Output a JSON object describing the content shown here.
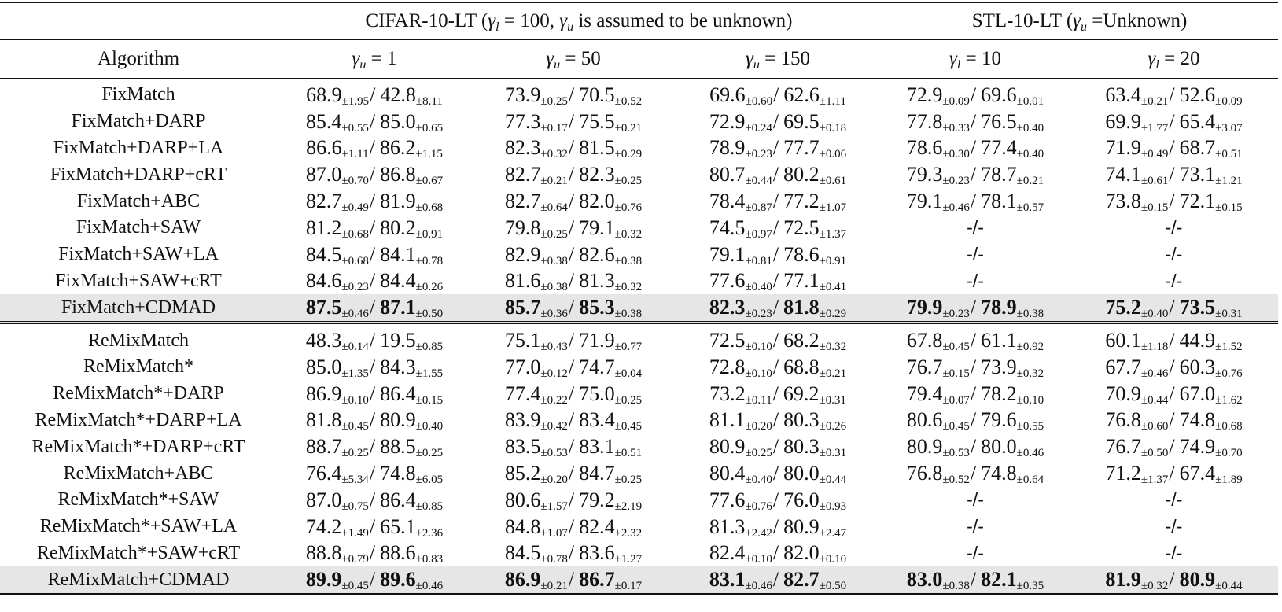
{
  "table": {
    "group_headers": [
      {
        "segments": [
          {
            "t": "CIFAR-10-LT ("
          },
          {
            "m": "γ",
            "s": "l"
          },
          {
            "t": " = 100, "
          },
          {
            "m": "γ",
            "s": "u"
          },
          {
            "t": " is assumed to be unknown)"
          }
        ]
      },
      {
        "segments": [
          {
            "t": "STL-10-LT ("
          },
          {
            "m": "γ",
            "s": "u"
          },
          {
            "t": " =Unknown)"
          }
        ]
      }
    ],
    "column_header_algorithm": "Algorithm",
    "columns": [
      {
        "sym": "γ",
        "sub": "u",
        "rest": " = 1"
      },
      {
        "sym": "γ",
        "sub": "u",
        "rest": " = 50"
      },
      {
        "sym": "γ",
        "sub": "u",
        "rest": " = 150"
      },
      {
        "sym": "γ",
        "sub": "l",
        "rest": " = 10"
      },
      {
        "sym": "γ",
        "sub": "l",
        "rest": " = 20"
      }
    ],
    "highlight_color": "#e6e6e6",
    "sections": [
      [
        {
          "name": "FixMatch",
          "cells": [
            [
              "68.9",
              "±1.95",
              "42.8",
              "±8.11"
            ],
            [
              "73.9",
              "±0.25",
              "70.5",
              "±0.52"
            ],
            [
              "69.6",
              "±0.60",
              "62.6",
              "±1.11"
            ],
            [
              "72.9",
              "±0.09",
              "69.6",
              "±0.01"
            ],
            [
              "63.4",
              "±0.21",
              "52.6",
              "±0.09"
            ]
          ]
        },
        {
          "name": "FixMatch+DARP",
          "cells": [
            [
              "85.4",
              "±0.55",
              "85.0",
              "±0.65"
            ],
            [
              "77.3",
              "±0.17",
              "75.5",
              "±0.21"
            ],
            [
              "72.9",
              "±0.24",
              "69.5",
              "±0.18"
            ],
            [
              "77.8",
              "±0.33",
              "76.5",
              "±0.40"
            ],
            [
              "69.9",
              "±1.77",
              "65.4",
              "±3.07"
            ]
          ]
        },
        {
          "name": "FixMatch+DARP+LA",
          "cells": [
            [
              "86.6",
              "±1.11",
              "86.2",
              "±1.15"
            ],
            [
              "82.3",
              "±0.32",
              "81.5",
              "±0.29"
            ],
            [
              "78.9",
              "±0.23",
              "77.7",
              "±0.06"
            ],
            [
              "78.6",
              "±0.30",
              "77.4",
              "±0.40"
            ],
            [
              "71.9",
              "±0.49",
              "68.7",
              "±0.51"
            ]
          ]
        },
        {
          "name": "FixMatch+DARP+cRT",
          "cells": [
            [
              "87.0",
              "±0.70",
              "86.8",
              "±0.67"
            ],
            [
              "82.7",
              "±0.21",
              "82.3",
              "±0.25"
            ],
            [
              "80.7",
              "±0.44",
              "80.2",
              "±0.61"
            ],
            [
              "79.3",
              "±0.23",
              "78.7",
              "±0.21"
            ],
            [
              "74.1",
              "±0.61",
              "73.1",
              "±1.21"
            ]
          ]
        },
        {
          "name": "FixMatch+ABC",
          "cells": [
            [
              "82.7",
              "±0.49",
              "81.9",
              "±0.68"
            ],
            [
              "82.7",
              "±0.64",
              "82.0",
              "±0.76"
            ],
            [
              "78.4",
              "±0.87",
              "77.2",
              "±1.07"
            ],
            [
              "79.1",
              "±0.46",
              "78.1",
              "±0.57"
            ],
            [
              "73.8",
              "±0.15",
              "72.1",
              "±0.15"
            ]
          ]
        },
        {
          "name": "FixMatch+SAW",
          "cells": [
            [
              "81.2",
              "±0.68",
              "80.2",
              "±0.91"
            ],
            [
              "79.8",
              "±0.25",
              "79.1",
              "±0.32"
            ],
            [
              "74.5",
              "±0.97",
              "72.5",
              "±1.37"
            ],
            "-/-",
            "-/-"
          ]
        },
        {
          "name": "FixMatch+SAW+LA",
          "cells": [
            [
              "84.5",
              "±0.68",
              "84.1",
              "±0.78"
            ],
            [
              "82.9",
              "±0.38",
              "82.6",
              "±0.38"
            ],
            [
              "79.1",
              "±0.81",
              "78.6",
              "±0.91"
            ],
            "-/-",
            "-/-"
          ]
        },
        {
          "name": "FixMatch+SAW+cRT",
          "cells": [
            [
              "84.6",
              "±0.23",
              "84.4",
              "±0.26"
            ],
            [
              "81.6",
              "±0.38",
              "81.3",
              "±0.32"
            ],
            [
              "77.6",
              "±0.40",
              "77.1",
              "±0.41"
            ],
            "-/-",
            "-/-"
          ]
        },
        {
          "name": "FixMatch+CDMAD",
          "highlight": true,
          "cells": [
            [
              "87.5",
              "±0.46",
              "87.1",
              "±0.50"
            ],
            [
              "85.7",
              "±0.36",
              "85.3",
              "±0.38"
            ],
            [
              "82.3",
              "±0.23",
              "81.8",
              "±0.29"
            ],
            [
              "79.9",
              "±0.23",
              "78.9",
              "±0.38"
            ],
            [
              "75.2",
              "±0.40",
              "73.5",
              "±0.31"
            ]
          ]
        }
      ],
      [
        {
          "name": "ReMixMatch",
          "cells": [
            [
              "48.3",
              "±0.14",
              "19.5",
              "±0.85"
            ],
            [
              "75.1",
              "±0.43",
              "71.9",
              "±0.77"
            ],
            [
              "72.5",
              "±0.10",
              "68.2",
              "±0.32"
            ],
            [
              "67.8",
              "±0.45",
              "61.1",
              "±0.92"
            ],
            [
              "60.1",
              "±1.18",
              "44.9",
              "±1.52"
            ]
          ]
        },
        {
          "name": "ReMixMatch*",
          "cells": [
            [
              "85.0",
              "±1.35",
              "84.3",
              "±1.55"
            ],
            [
              "77.0",
              "±0.12",
              "74.7",
              "±0.04"
            ],
            [
              "72.8",
              "±0.10",
              "68.8",
              "±0.21"
            ],
            [
              "76.7",
              "±0.15",
              "73.9",
              "±0.32"
            ],
            [
              "67.7",
              "±0.46",
              "60.3",
              "±0.76"
            ]
          ]
        },
        {
          "name": "ReMixMatch*+DARP",
          "cells": [
            [
              "86.9",
              "±0.10",
              "86.4",
              "±0.15"
            ],
            [
              "77.4",
              "±0.22",
              "75.0",
              "±0.25"
            ],
            [
              "73.2",
              "±0.11",
              "69.2",
              "±0.31"
            ],
            [
              "79.4",
              "±0.07",
              "78.2",
              "±0.10"
            ],
            [
              "70.9",
              "±0.44",
              "67.0",
              "±1.62"
            ]
          ]
        },
        {
          "name": "ReMixMatch*+DARP+LA",
          "cells": [
            [
              "81.8",
              "±0.45",
              "80.9",
              "±0.40"
            ],
            [
              "83.9",
              "±0.42",
              "83.4",
              "±0.45"
            ],
            [
              "81.1",
              "±0.20",
              "80.3",
              "±0.26"
            ],
            [
              "80.6",
              "±0.45",
              "79.6",
              "±0.55"
            ],
            [
              "76.8",
              "±0.60",
              "74.8",
              "±0.68"
            ]
          ]
        },
        {
          "name": "ReMixMatch*+DARP+cRT",
          "cells": [
            [
              "88.7",
              "±0.25",
              "88.5",
              "±0.25"
            ],
            [
              "83.5",
              "±0.53",
              "83.1",
              "±0.51"
            ],
            [
              "80.9",
              "±0.25",
              "80.3",
              "±0.31"
            ],
            [
              "80.9",
              "±0.53",
              "80.0",
              "±0.46"
            ],
            [
              "76.7",
              "±0.50",
              "74.9",
              "±0.70"
            ]
          ]
        },
        {
          "name": "ReMixMatch+ABC",
          "cells": [
            [
              "76.4",
              "±5.34",
              "74.8",
              "±6.05"
            ],
            [
              "85.2",
              "±0.20",
              "84.7",
              "±0.25"
            ],
            [
              "80.4",
              "±0.40",
              "80.0",
              "±0.44"
            ],
            [
              "76.8",
              "±0.52",
              "74.8",
              "±0.64"
            ],
            [
              "71.2",
              "±1.37",
              "67.4",
              "±1.89"
            ]
          ]
        },
        {
          "name": "ReMixMatch*+SAW",
          "cells": [
            [
              "87.0",
              "±0.75",
              "86.4",
              "±0.85"
            ],
            [
              "80.6",
              "±1.57",
              "79.2",
              "±2.19"
            ],
            [
              "77.6",
              "±0.76",
              "76.0",
              "±0.93"
            ],
            "-/-",
            "-/-"
          ]
        },
        {
          "name": "ReMixMatch*+SAW+LA",
          "cells": [
            [
              "74.2",
              "±1.49",
              "65.1",
              "±2.36"
            ],
            [
              "84.8",
              "±1.07",
              "82.4",
              "±2.32"
            ],
            [
              "81.3",
              "±2.42",
              "80.9",
              "±2.47"
            ],
            "-/-",
            "-/-"
          ]
        },
        {
          "name": "ReMixMatch*+SAW+cRT",
          "cells": [
            [
              "88.8",
              "±0.79",
              "88.6",
              "±0.83"
            ],
            [
              "84.5",
              "±0.78",
              "83.6",
              "±1.27"
            ],
            [
              "82.4",
              "±0.10",
              "82.0",
              "±0.10"
            ],
            "-/-",
            "-/-"
          ]
        },
        {
          "name": "ReMixMatch+CDMAD",
          "highlight": true,
          "cells": [
            [
              "89.9",
              "±0.45",
              "89.6",
              "±0.46"
            ],
            [
              "86.9",
              "±0.21",
              "86.7",
              "±0.17"
            ],
            [
              "83.1",
              "±0.46",
              "82.7",
              "±0.50"
            ],
            [
              "83.0",
              "±0.38",
              "82.1",
              "±0.35"
            ],
            [
              "81.9",
              "±0.32",
              "80.9",
              "±0.44"
            ]
          ]
        }
      ]
    ]
  }
}
